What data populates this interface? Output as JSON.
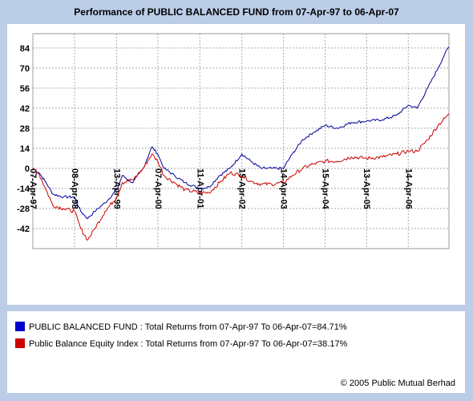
{
  "chart_data": {
    "type": "line",
    "title": "Performance of PUBLIC BALANCED FUND from 07-Apr-97 to 06-Apr-07",
    "xlabel": "",
    "ylabel": "",
    "ylim": [
      -56,
      94
    ],
    "y_ticks": [
      84,
      70,
      56,
      42,
      28,
      14,
      0,
      -14,
      -28,
      -42
    ],
    "x_ticks": [
      "07-Apr-97",
      "08-Apr-98",
      "13-Apr-99",
      "07-Apr-00",
      "11-Apr-01",
      "15-Apr-02",
      "14-Apr-03",
      "15-Apr-04",
      "13-Apr-05",
      "14-Apr-06"
    ],
    "x_range": [
      "07-Apr-97",
      "06-Apr-07"
    ],
    "grid": true,
    "series": [
      {
        "name": "PUBLIC BALANCED FUND",
        "color": "#000099",
        "points": [
          [
            "07-Apr-97",
            0
          ],
          [
            "01-Jun-97",
            -3
          ],
          [
            "01-Aug-97",
            -10
          ],
          [
            "01-Oct-97",
            -18
          ],
          [
            "01-Jan-98",
            -20
          ],
          [
            "08-Apr-98",
            -20
          ],
          [
            "01-Jun-98",
            -30
          ],
          [
            "01-Aug-98",
            -35
          ],
          [
            "01-Oct-98",
            -30
          ],
          [
            "01-Jan-99",
            -24
          ],
          [
            "13-Apr-99",
            -15
          ],
          [
            "01-Jun-99",
            -5
          ],
          [
            "01-Sep-99",
            -10
          ],
          [
            "01-Dec-99",
            0
          ],
          [
            "15-Feb-00",
            15
          ],
          [
            "07-Apr-00",
            10
          ],
          [
            "01-Jun-00",
            0
          ],
          [
            "01-Sep-00",
            -5
          ],
          [
            "01-Dec-00",
            -10
          ],
          [
            "11-Apr-01",
            -14
          ],
          [
            "01-Jul-01",
            -13
          ],
          [
            "01-Oct-01",
            -5
          ],
          [
            "01-Jan-02",
            0
          ],
          [
            "15-Apr-02",
            10
          ],
          [
            "01-Jul-02",
            5
          ],
          [
            "01-Oct-02",
            0
          ],
          [
            "01-Jan-03",
            0
          ],
          [
            "14-Apr-03",
            0
          ],
          [
            "01-Jul-03",
            10
          ],
          [
            "01-Oct-03",
            20
          ],
          [
            "01-Jan-04",
            25
          ],
          [
            "15-Apr-04",
            30
          ],
          [
            "01-Aug-04",
            28
          ],
          [
            "01-Dec-04",
            32
          ],
          [
            "13-Apr-05",
            33
          ],
          [
            "01-Sep-05",
            34
          ],
          [
            "01-Jan-06",
            37
          ],
          [
            "14-Apr-06",
            44
          ],
          [
            "01-Jul-06",
            42
          ],
          [
            "01-Oct-06",
            56
          ],
          [
            "01-Jan-07",
            70
          ],
          [
            "01-Mar-07",
            80
          ],
          [
            "06-Apr-07",
            84.71
          ]
        ]
      },
      {
        "name": "Public Balance Equity Index",
        "color": "#cc0000",
        "points": [
          [
            "07-Apr-97",
            0
          ],
          [
            "01-Jun-97",
            -4
          ],
          [
            "01-Aug-97",
            -15
          ],
          [
            "01-Oct-97",
            -26
          ],
          [
            "01-Jan-98",
            -28
          ],
          [
            "08-Apr-98",
            -30
          ],
          [
            "01-Jun-98",
            -42
          ],
          [
            "01-Aug-98",
            -50
          ],
          [
            "01-Oct-98",
            -42
          ],
          [
            "01-Jan-99",
            -30
          ],
          [
            "13-Apr-99",
            -20
          ],
          [
            "01-Jun-99",
            -10
          ],
          [
            "01-Sep-99",
            -8
          ],
          [
            "01-Dec-99",
            0
          ],
          [
            "15-Feb-00",
            10
          ],
          [
            "07-Apr-00",
            5
          ],
          [
            "01-Jun-00",
            -5
          ],
          [
            "01-Sep-00",
            -10
          ],
          [
            "01-Dec-00",
            -15
          ],
          [
            "11-Apr-01",
            -17
          ],
          [
            "01-Jul-01",
            -17
          ],
          [
            "01-Oct-01",
            -10
          ],
          [
            "01-Jan-02",
            -3
          ],
          [
            "15-Apr-02",
            -5
          ],
          [
            "01-Jul-02",
            -9
          ],
          [
            "01-Oct-02",
            -11
          ],
          [
            "01-Jan-03",
            -11
          ],
          [
            "14-Apr-03",
            -10
          ],
          [
            "01-Jul-03",
            -5
          ],
          [
            "01-Oct-03",
            0
          ],
          [
            "01-Jan-04",
            3
          ],
          [
            "15-Apr-04",
            5
          ],
          [
            "01-Aug-04",
            5
          ],
          [
            "01-Dec-04",
            8
          ],
          [
            "13-Apr-05",
            7
          ],
          [
            "01-Sep-05",
            8
          ],
          [
            "01-Jan-06",
            10
          ],
          [
            "14-Apr-06",
            12
          ],
          [
            "01-Jul-06",
            12
          ],
          [
            "01-Oct-06",
            20
          ],
          [
            "01-Jan-07",
            30
          ],
          [
            "01-Mar-07",
            35
          ],
          [
            "06-Apr-07",
            38.17
          ]
        ]
      }
    ]
  },
  "legend": {
    "items": [
      {
        "swatch_color": "#0000cc",
        "text": "PUBLIC BALANCED FUND : Total Returns from 07-Apr-97 To 06-Apr-07=84.71%"
      },
      {
        "swatch_color": "#cc0000",
        "text": "Public Balance Equity Index : Total Returns from 07-Apr-97 To 06-Apr-07=38.17%"
      }
    ]
  },
  "copyright": "© 2005 Public Mutual Berhad"
}
